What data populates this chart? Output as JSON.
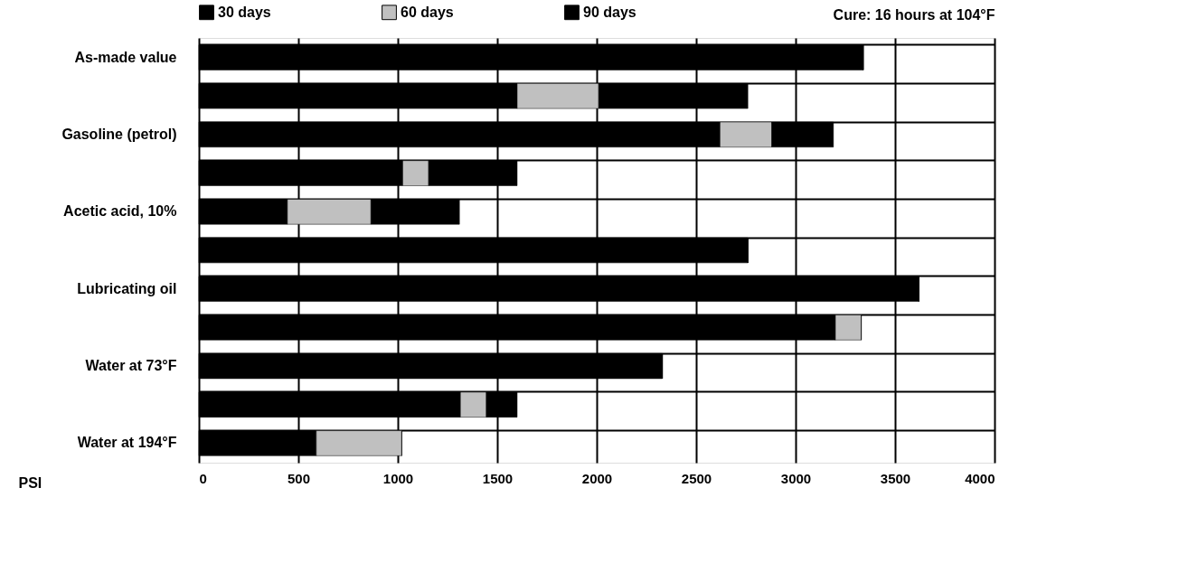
{
  "chart_data": {
    "type": "bar",
    "orientation": "horizontal",
    "stacked": true,
    "categories": [
      "As-made value",
      null,
      "Gasoline (petrol)",
      null,
      "Acetic acid, 10%",
      null,
      "Lubricating oil",
      null,
      "Water at 73°F",
      null,
      "Water at 194°F"
    ],
    "series": [
      {
        "name": "30 days",
        "color": "#000000",
        "values": [
          3340,
          1600,
          2620,
          1025,
          445,
          2760,
          3620,
          3200,
          2330,
          1315,
          590
        ]
      },
      {
        "name": "60 days",
        "color": "#c0c0c0",
        "values": [
          0,
          410,
          260,
          130,
          420,
          0,
          0,
          130,
          0,
          130,
          430
        ]
      },
      {
        "name": "90 days",
        "color": "#000000",
        "values": [
          0,
          750,
          310,
          445,
          445,
          0,
          0,
          0,
          0,
          155,
          0
        ]
      }
    ],
    "xlabel": "PSI",
    "xlim": [
      0,
      4000
    ],
    "xticks": [
      0,
      500,
      1000,
      1500,
      2000,
      2500,
      3000,
      3500,
      4000
    ],
    "grid": true,
    "legend": "top",
    "annotations": [
      "Cure: 16 hours at 104°F"
    ]
  }
}
